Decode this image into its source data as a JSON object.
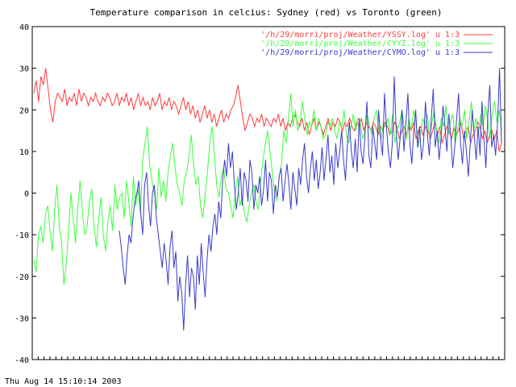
{
  "chart_data": {
    "type": "line",
    "title": "Temperature comparison in celcius: Sydney (red) vs Toronto (green)",
    "xlabel": "",
    "ylabel": "",
    "ylim": [
      -40,
      40
    ],
    "yticks": [
      -40,
      -30,
      -20,
      -10,
      0,
      10,
      20,
      30,
      40
    ],
    "grid": false,
    "legend_position": "top-right",
    "x_tick_labels_note": "dense overlapping tick labels along bottom axis",
    "series": [
      {
        "name": "'/h/29/morri/proj/Weather/YSSY.log' u 1:3",
        "color": "#ff3b3b",
        "values": [
          24,
          27,
          22,
          28,
          26,
          30,
          25,
          20,
          17,
          22,
          24,
          23,
          22,
          25,
          21,
          23,
          22,
          24,
          21,
          25,
          22,
          24,
          23,
          21,
          23,
          22,
          24,
          22,
          21,
          23,
          22,
          24,
          23,
          21,
          22,
          24,
          21,
          23,
          22,
          24,
          21,
          23,
          20,
          22,
          24,
          21,
          23,
          21,
          22,
          20,
          23,
          21,
          22,
          24,
          20,
          22,
          21,
          23,
          20,
          22,
          21,
          19,
          21,
          23,
          20,
          22,
          19,
          21,
          18,
          20,
          17,
          19,
          21,
          18,
          20,
          17,
          19,
          16,
          18,
          20,
          17,
          19,
          18,
          20,
          21,
          23,
          26,
          22,
          18,
          15,
          17,
          19,
          18,
          16,
          18,
          17,
          19,
          16,
          18,
          17,
          16,
          18,
          17,
          19,
          16,
          18,
          15,
          17,
          16,
          18,
          19,
          17,
          16,
          18,
          15,
          17,
          14,
          16,
          18,
          15,
          17,
          16,
          14,
          16,
          18,
          15,
          17,
          16,
          18,
          17,
          15,
          17,
          16,
          18,
          16,
          15,
          17,
          16,
          18,
          15,
          17,
          16,
          15,
          17,
          16,
          14,
          16,
          15,
          17,
          16,
          14,
          15,
          17,
          16,
          13,
          15,
          16,
          14,
          16,
          15,
          17,
          13,
          15,
          16,
          14,
          16,
          15,
          13,
          15,
          17,
          14,
          16,
          12,
          14,
          16,
          15,
          13,
          16,
          14,
          15,
          17,
          13,
          15,
          16,
          12,
          14,
          15,
          17,
          16,
          13,
          15,
          12,
          14,
          15,
          13,
          15,
          10,
          12
        ]
      },
      {
        "name": "'/h/29/morri/proj/Weather/CYYZ.log' u 1:3",
        "color": "#3bff3b",
        "values": [
          -16,
          -19,
          -10,
          -8,
          -12,
          -5,
          -3,
          -9,
          -14,
          -4,
          2,
          -8,
          -12,
          -22,
          -17,
          -9,
          0,
          -6,
          -12,
          -3,
          3,
          -5,
          -10,
          -8,
          -2,
          1,
          -8,
          -13,
          -6,
          -1,
          -10,
          -14,
          -7,
          -3,
          -9,
          2,
          -4,
          -1,
          0,
          -6,
          3,
          -2,
          -8,
          4,
          -3,
          1,
          -5,
          8,
          12,
          16,
          7,
          3,
          0,
          -4,
          6,
          -1,
          3,
          -2,
          5,
          9,
          12,
          6,
          2,
          0,
          -3,
          3,
          5,
          9,
          14,
          7,
          2,
          4,
          -3,
          -6,
          0,
          5,
          12,
          16,
          9,
          2,
          -1,
          4,
          6,
          1,
          0,
          -3,
          -6,
          0,
          4,
          -3,
          -1,
          -5,
          -7,
          -3,
          0,
          2,
          -2,
          -4,
          3,
          8,
          12,
          15,
          10,
          5,
          0,
          -2,
          4,
          7,
          15,
          12,
          18,
          24,
          16,
          20,
          15,
          17,
          22,
          18,
          14,
          17,
          16,
          20,
          15,
          18,
          16,
          13,
          14,
          17,
          16,
          18,
          15,
          13,
          17,
          16,
          20,
          14,
          12,
          16,
          19,
          15,
          18,
          17,
          13,
          15,
          19,
          16,
          14,
          18,
          20,
          15,
          13,
          17,
          16,
          18,
          14,
          19,
          12,
          15,
          17,
          20,
          16,
          13,
          18,
          15,
          20,
          17,
          11,
          14,
          18,
          16,
          19,
          13,
          17,
          20,
          15,
          12,
          18,
          16,
          21,
          14,
          17,
          19,
          12,
          15,
          18,
          16,
          20,
          13,
          17,
          22,
          15,
          18,
          14,
          19,
          16,
          21,
          18,
          13,
          19,
          22,
          17,
          20,
          15
        ]
      },
      {
        "name": "'/h/29/morri/proj/Weather/CYMO.log' u 1:3",
        "color": "#3b3bcc",
        "values": [
          -9,
          -13,
          -18,
          -22,
          -15,
          -10,
          -12,
          -6,
          -2,
          0,
          3,
          -5,
          -10,
          2,
          5,
          -3,
          -8,
          0,
          2,
          -6,
          -10,
          -14,
          -18,
          -12,
          -16,
          -22,
          -13,
          -9,
          -18,
          -14,
          -26,
          -20,
          -24,
          -33,
          -22,
          -15,
          -25,
          -18,
          -20,
          -28,
          -15,
          -22,
          -12,
          -19,
          -25,
          -16,
          -10,
          -14,
          -8,
          -5,
          -10,
          -2,
          -6,
          3,
          8,
          4,
          12,
          6,
          10,
          2,
          -4,
          0,
          6,
          -3,
          5,
          3,
          -2,
          8,
          5,
          -4,
          2,
          0,
          4,
          -3,
          1,
          8,
          -2,
          5,
          3,
          -5,
          2,
          -1,
          4,
          6,
          -2,
          3,
          7,
          2,
          -4,
          5,
          1,
          -3,
          6,
          2,
          8,
          12,
          4,
          0,
          6,
          10,
          3,
          8,
          1,
          5,
          11,
          3,
          8,
          14,
          5,
          9,
          2,
          12,
          6,
          10,
          15,
          8,
          3,
          12,
          17,
          10,
          6,
          13,
          5,
          18,
          10,
          7,
          14,
          22,
          9,
          6,
          16,
          12,
          8,
          20,
          13,
          9,
          24,
          16,
          10,
          6,
          12,
          28,
          15,
          8,
          13,
          20,
          10,
          17,
          24,
          12,
          7,
          15,
          20,
          11,
          16,
          8,
          12,
          22,
          14,
          9,
          18,
          25,
          11,
          15,
          8,
          13,
          21,
          16,
          10,
          19,
          14,
          6,
          11,
          18,
          24,
          12,
          7,
          15,
          10,
          4,
          12,
          20,
          14,
          8,
          16,
          9,
          22,
          13,
          6,
          19,
          26,
          11,
          14,
          9,
          17,
          30,
          12
        ]
      }
    ]
  },
  "footer": {
    "timestamp": "Thu Aug 14 15:10:14 2003"
  }
}
